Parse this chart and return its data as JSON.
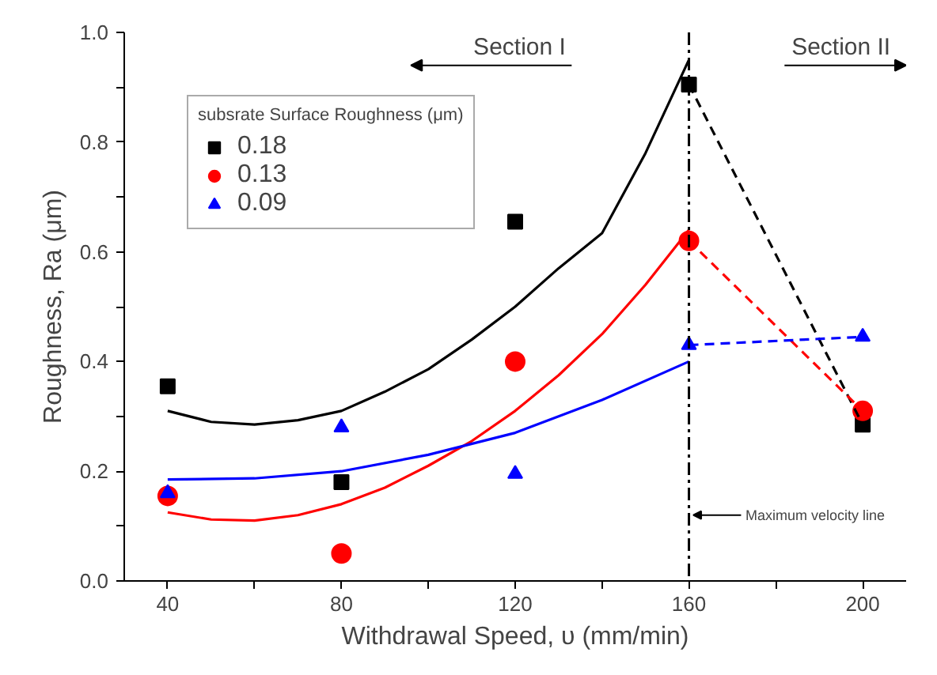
{
  "chart_data": {
    "type": "scatter",
    "xlabel": "Withdrawal Speed, υ (mm/min)",
    "ylabel": "Roughness, Ra (μm)",
    "legend_title": "subsrate Surface Roughness (μm)",
    "x": [
      40,
      80,
      120,
      160,
      200
    ],
    "series": [
      {
        "name": "0.18",
        "color": "#000000",
        "marker": "square",
        "values": [
          0.355,
          0.18,
          0.655,
          0.905,
          0.285
        ]
      },
      {
        "name": "0.13",
        "color": "#ff0000",
        "marker": "circle",
        "values": [
          0.155,
          0.05,
          0.4,
          0.62,
          0.31
        ]
      },
      {
        "name": "0.09",
        "color": "#0000ff",
        "marker": "triangle",
        "values": [
          0.16,
          0.28,
          0.195,
          0.43,
          0.445
        ]
      },
      {
        "type": "line",
        "color": "#000000",
        "x": [
          40,
          50,
          60,
          70,
          80,
          90,
          100,
          110,
          120,
          130,
          140,
          150,
          160
        ],
        "values": [
          0.31,
          0.29,
          0.285,
          0.293,
          0.31,
          0.345,
          0.386,
          0.44,
          0.5,
          0.57,
          0.634,
          0.78,
          0.95
        ]
      },
      {
        "type": "line",
        "color": "#ff0000",
        "x": [
          40,
          50,
          60,
          70,
          80,
          90,
          100,
          110,
          120,
          130,
          140,
          150,
          160
        ],
        "values": [
          0.125,
          0.112,
          0.11,
          0.12,
          0.14,
          0.17,
          0.21,
          0.255,
          0.31,
          0.375,
          0.45,
          0.54,
          0.64
        ]
      },
      {
        "type": "line",
        "color": "#0000ff",
        "x": [
          40,
          60,
          80,
          100,
          120,
          140,
          160
        ],
        "values": [
          0.185,
          0.187,
          0.2,
          0.23,
          0.27,
          0.33,
          0.4
        ]
      },
      {
        "type": "line",
        "line_style": "dashed",
        "color": "#000000",
        "x": [
          160,
          200
        ],
        "values": [
          0.905,
          0.285
        ]
      },
      {
        "type": "line",
        "line_style": "dashed",
        "color": "#ff0000",
        "x": [
          160,
          200
        ],
        "values": [
          0.62,
          0.31
        ]
      },
      {
        "type": "line",
        "line_style": "dashed",
        "color": "#0000ff",
        "x": [
          160,
          200
        ],
        "values": [
          0.43,
          0.445
        ]
      }
    ],
    "ref_lines": [
      {
        "axis": "x",
        "value": 160,
        "label": "Maximum velocity line",
        "color": "#000000",
        "line_style": "dashdot"
      }
    ],
    "annotations": [
      "Section I",
      "Section II"
    ],
    "xlim": [
      30,
      210
    ],
    "ylim": [
      0,
      1.0
    ],
    "xticks": [
      40,
      {
        "value": 60,
        "label": null
      },
      80,
      {
        "value": 100,
        "label": null
      },
      120,
      {
        "value": 140,
        "label": null
      },
      160,
      {
        "value": 180,
        "label": null
      },
      200
    ],
    "yticks": [
      {
        "value": 0,
        "label": "0.0"
      },
      {
        "value": 0.1,
        "label": null
      },
      0.2,
      {
        "value": 0.3,
        "label": null
      },
      0.4,
      {
        "value": 0.5,
        "label": null
      },
      0.6,
      {
        "value": 0.7,
        "label": null
      },
      0.8,
      {
        "value": 0.9,
        "label": null
      },
      {
        "value": 1,
        "label": "1.0"
      }
    ],
    "grid": false,
    "legend": "top left"
  }
}
